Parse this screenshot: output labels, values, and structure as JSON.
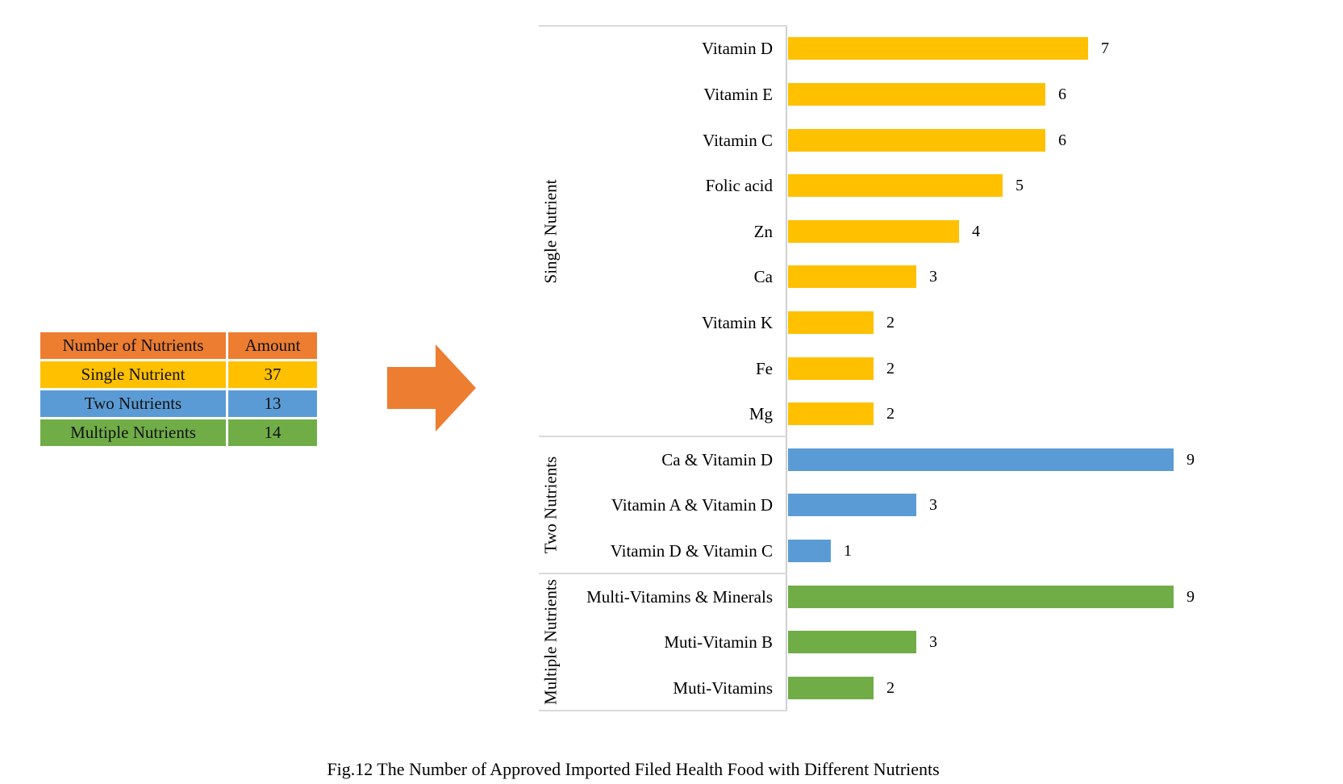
{
  "table": {
    "header_color": "#ED7D31",
    "headers": [
      "Number of Nutrients",
      "Amount"
    ],
    "rows": [
      {
        "label": "Single Nutrient",
        "value": "37",
        "color": "#FFC000"
      },
      {
        "label": "Two Nutrients",
        "value": "13",
        "color": "#5B9BD5"
      },
      {
        "label": "Multiple Nutrients",
        "value": "14",
        "color": "#70AD47"
      }
    ]
  },
  "arrow": {
    "direction": "right",
    "color": "#ED7D31"
  },
  "chart_data": {
    "type": "bar",
    "orientation": "horizontal",
    "title": "",
    "xlabel": "",
    "ylabel": "",
    "value_axis_visible": false,
    "xlim": [
      0,
      10
    ],
    "grid": "group-dividers-only",
    "line_color": "#d9d9d9",
    "groups": [
      {
        "name": "Single Nutrient",
        "color": "#FFC000",
        "items": [
          {
            "label": "Vitamin D",
            "value": 7
          },
          {
            "label": "Vitamin E",
            "value": 6
          },
          {
            "label": "Vitamin C",
            "value": 6
          },
          {
            "label": "Folic acid",
            "value": 5
          },
          {
            "label": "Zn",
            "value": 4
          },
          {
            "label": "Ca",
            "value": 3
          },
          {
            "label": "Vitamin K",
            "value": 2
          },
          {
            "label": "Fe",
            "value": 2
          },
          {
            "label": "Mg",
            "value": 2
          }
        ]
      },
      {
        "name": "Two Nutrients",
        "color": "#5B9BD5",
        "items": [
          {
            "label": "Ca & Vitamin D",
            "value": 9
          },
          {
            "label": "Vitamin A & Vitamin D",
            "value": 3
          },
          {
            "label": "Vitamin D & Vitamin C",
            "value": 1
          }
        ]
      },
      {
        "name": "Multiple Nutrients",
        "color": "#70AD47",
        "items": [
          {
            "label": "Multi-Vitamins & Minerals",
            "value": 9
          },
          {
            "label": "Muti-Vitamin B",
            "value": 3
          },
          {
            "label": "Muti-Vitamins",
            "value": 2
          }
        ]
      }
    ]
  },
  "caption": "Fig.12 The Number of Approved Imported Filed Health Food with Different Nutrients"
}
